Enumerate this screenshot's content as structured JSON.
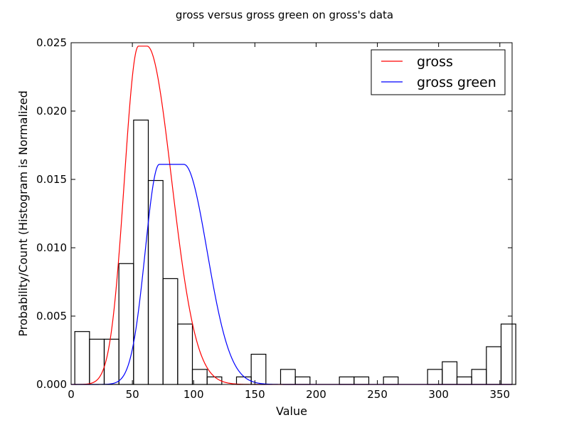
{
  "chart_data": {
    "type": "bar",
    "title": "gross versus gross green on gross's data",
    "xlabel": "Value",
    "ylabel": "Probability/Count (Histogram is Normalized",
    "xlim": [
      0,
      360
    ],
    "ylim": [
      0,
      0.025
    ],
    "x_ticks": [
      0,
      50,
      100,
      150,
      200,
      250,
      300,
      350
    ],
    "y_ticks": [
      0.0,
      0.005,
      0.01,
      0.015,
      0.02,
      0.025
    ],
    "x_tick_labels": [
      "0",
      "50",
      "100",
      "150",
      "200",
      "250",
      "300",
      "350"
    ],
    "y_tick_labels": [
      "0.000",
      "0.005",
      "0.010",
      "0.015",
      "0.020",
      "0.025"
    ],
    "grid": false,
    "legend_position": "top-right",
    "histogram": {
      "bin_edges": [
        3,
        15,
        27,
        39,
        51,
        63,
        75,
        87,
        99,
        111,
        123,
        135,
        147,
        159,
        171,
        183,
        195,
        207,
        219,
        231,
        243,
        255,
        267,
        279,
        291,
        303,
        315,
        327,
        339,
        351
      ],
      "values": [
        0.00387,
        0.00331,
        0.00331,
        0.00884,
        0.01934,
        0.01492,
        0.00774,
        0.00442,
        0.0011,
        0.00055,
        0.0,
        0.00055,
        0.00221,
        0.0,
        0.0011,
        0.00055,
        0.0,
        0.0,
        0.00055,
        0.00055,
        0.0,
        0.00055,
        0.0,
        0.0,
        0.0011,
        0.00166,
        0.00055,
        0.0011,
        0.00276,
        0.00442
      ]
    },
    "series": [
      {
        "name": "gross",
        "color": "#ff0000",
        "model": "gross",
        "params": {
          "peak": 0.02475,
          "flat_lo": 55,
          "flat_hi": 62,
          "sigma_left": 11.5,
          "sigma_right": 20
        }
      },
      {
        "name": "gross green",
        "color": "#0000ff",
        "model": "gross",
        "params": {
          "peak": 0.0161,
          "flat_lo": 72,
          "flat_hi": 92,
          "sigma_left": 11.5,
          "sigma_right": 19
        }
      }
    ],
    "legend": {
      "entries": [
        "gross",
        "gross green"
      ]
    }
  }
}
